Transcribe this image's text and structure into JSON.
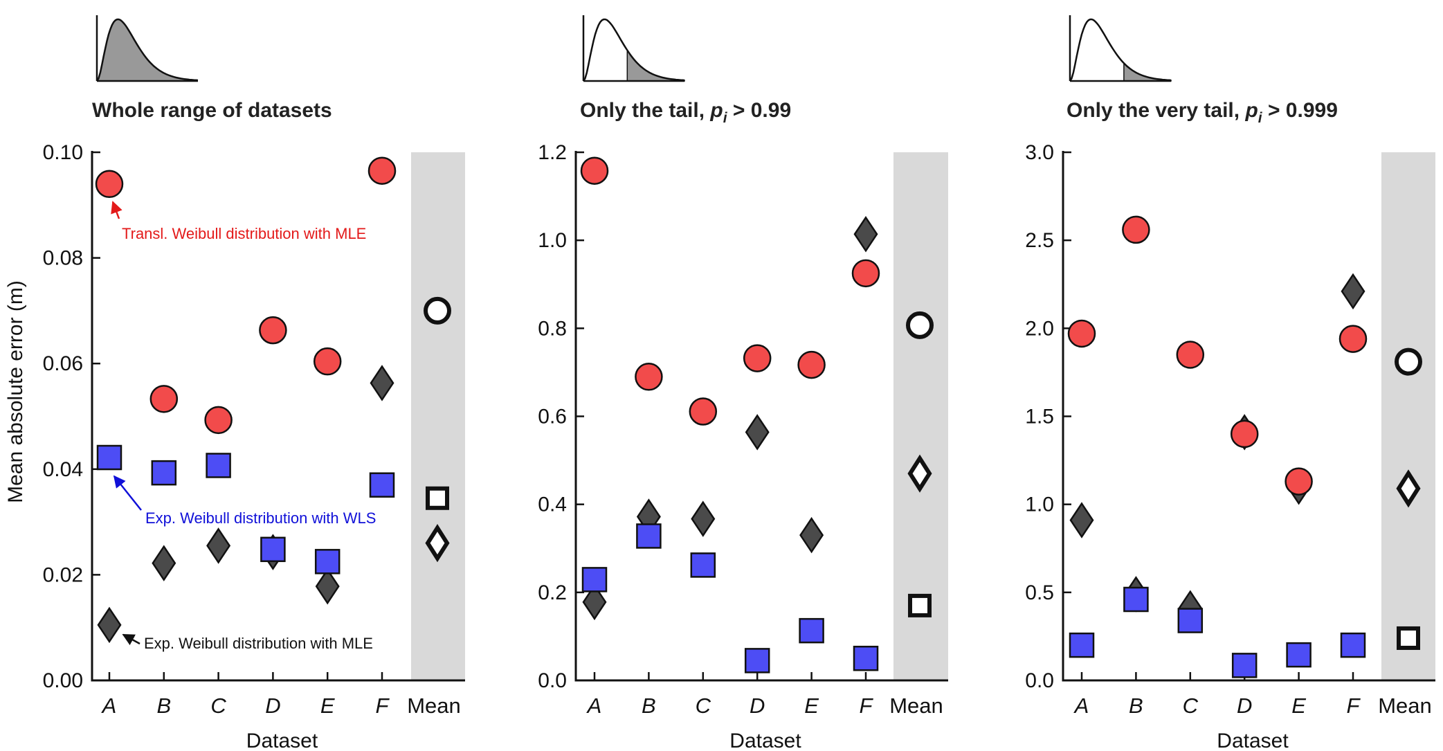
{
  "chart_data": [
    {
      "type": "scatter",
      "title": "Whole range of datasets",
      "title_sub": "",
      "title_tail": "",
      "inset": "whole",
      "xlabel": "Dataset",
      "ylabel": "Mean absolute error (m)",
      "categories": [
        "A",
        "B",
        "C",
        "D",
        "E",
        "F",
        "Mean"
      ],
      "ylim": [
        0,
        0.1
      ],
      "yticks": [
        "0.00",
        "0.02",
        "0.04",
        "0.06",
        "0.08",
        "0.10"
      ],
      "series": [
        {
          "name": "Transl. Weibull distribution with MLE",
          "marker": "circle",
          "color": "#f24b4b",
          "values": [
            0.094,
            0.0533,
            0.0493,
            0.0663,
            0.0604,
            0.0965
          ]
        },
        {
          "name": "Exp. Weibull distribution with WLS",
          "marker": "square",
          "color": "#4d4df5",
          "values": [
            0.0422,
            0.0393,
            0.0407,
            0.0248,
            0.0225,
            0.037
          ]
        },
        {
          "name": "Exp. Weibull distribution with MLE",
          "marker": "diamond",
          "color": "#4a4a4a",
          "values": [
            0.0105,
            0.0222,
            0.0255,
            0.0243,
            0.0178,
            0.0563
          ]
        }
      ],
      "mean": {
        "circle": 0.07,
        "square": 0.0345,
        "diamond": 0.026
      },
      "annotations": [
        {
          "text": "Transl. Weibull distribution with MLE",
          "color": "#e31a1a",
          "series": 0,
          "category": "A"
        },
        {
          "text": "Exp. Weibull distribution with WLS",
          "color": "#1010d8",
          "series": 1,
          "category": "A"
        },
        {
          "text": "Exp. Weibull distribution with MLE",
          "color": "#111111",
          "series": 2,
          "category": "A"
        }
      ]
    },
    {
      "type": "scatter",
      "title": "Only the tail, ",
      "title_sub": "i",
      "title_tail": " > 0.99",
      "inset": "tail",
      "xlabel": "Dataset",
      "ylabel": "",
      "categories": [
        "A",
        "B",
        "C",
        "D",
        "E",
        "F",
        "Mean"
      ],
      "ylim": [
        0,
        1.2
      ],
      "yticks": [
        "0.0",
        "0.2",
        "0.4",
        "0.6",
        "0.8",
        "1.0",
        "1.2"
      ],
      "series": [
        {
          "name": "Transl. Weibull distribution with MLE",
          "marker": "circle",
          "color": "#f24b4b",
          "values": [
            1.158,
            0.69,
            0.611,
            0.732,
            0.717,
            0.925
          ]
        },
        {
          "name": "Exp. Weibull distribution with WLS",
          "marker": "square",
          "color": "#4d4df5",
          "values": [
            0.229,
            0.328,
            0.262,
            0.045,
            0.113,
            0.05
          ]
        },
        {
          "name": "Exp. Weibull distribution with MLE",
          "marker": "diamond",
          "color": "#4a4a4a",
          "values": [
            0.178,
            0.372,
            0.367,
            0.564,
            0.33,
            1.014
          ]
        }
      ],
      "mean": {
        "circle": 0.807,
        "square": 0.17,
        "diamond": 0.47
      },
      "annotations": []
    },
    {
      "type": "scatter",
      "title": "Only the very tail, ",
      "title_sub": "i",
      "title_tail": " > 0.999",
      "inset": "verytail",
      "xlabel": "Dataset",
      "ylabel": "",
      "categories": [
        "A",
        "B",
        "C",
        "D",
        "E",
        "F",
        "Mean"
      ],
      "ylim": [
        0,
        3.0
      ],
      "yticks": [
        "0.0",
        "0.5",
        "1.0",
        "1.5",
        "2.0",
        "2.5",
        "3.0"
      ],
      "series": [
        {
          "name": "Transl. Weibull distribution with MLE",
          "marker": "circle",
          "color": "#f24b4b",
          "values": [
            1.97,
            2.56,
            1.85,
            1.4,
            1.13,
            1.94
          ]
        },
        {
          "name": "Exp. Weibull distribution with WLS",
          "marker": "square",
          "color": "#4d4df5",
          "values": [
            0.2,
            0.46,
            0.34,
            0.085,
            0.145,
            0.2
          ]
        },
        {
          "name": "Exp. Weibull distribution with MLE",
          "marker": "diamond",
          "color": "#4a4a4a",
          "values": [
            0.91,
            0.49,
            0.41,
            1.41,
            1.1,
            2.21
          ]
        }
      ],
      "mean": {
        "circle": 1.81,
        "square": 0.24,
        "diamond": 1.09
      },
      "annotations": []
    }
  ]
}
